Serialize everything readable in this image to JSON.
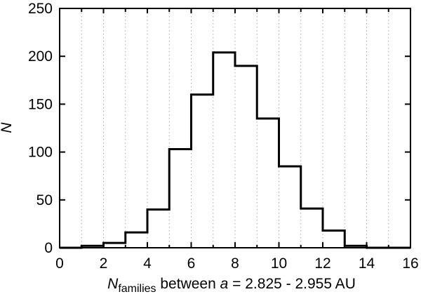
{
  "chart_data": {
    "type": "bar",
    "subtype": "step-histogram-outline",
    "title": "",
    "bin_left_edges": [
      0,
      1,
      2,
      3,
      4,
      5,
      6,
      7,
      8,
      9,
      10,
      11,
      12,
      13,
      14,
      15
    ],
    "bin_width": 1,
    "values": [
      0,
      2,
      5,
      16,
      40,
      103,
      160,
      204,
      190,
      135,
      85,
      41,
      18,
      2,
      0,
      0
    ],
    "xlim": [
      0,
      16
    ],
    "ylim": [
      0,
      250
    ],
    "x_major_ticks": [
      0,
      2,
      4,
      6,
      8,
      10,
      12,
      14,
      16
    ],
    "x_major_tick_labels": [
      "0",
      "2",
      "4",
      "6",
      "8",
      "10",
      "12",
      "14",
      "16"
    ],
    "x_minor_ticks": [
      1,
      3,
      5,
      7,
      9,
      11,
      13,
      15
    ],
    "y_major_ticks": [
      0,
      50,
      100,
      150,
      200,
      250
    ],
    "y_major_tick_labels": [
      "0",
      "50",
      "100",
      "150",
      "200",
      "250"
    ],
    "grid_vertical_lines_at": [
      1,
      2,
      3,
      4,
      5,
      6,
      7,
      8,
      9,
      10,
      11,
      12,
      13,
      14,
      15
    ],
    "grid_style": "dotted",
    "legend": "none",
    "ylabel": "N",
    "ylabel_style": "italic",
    "xlabel_parts": [
      {
        "text": "N",
        "style": "italic"
      },
      {
        "text": "families",
        "style": "sub"
      },
      {
        "text": " between ",
        "style": "normal"
      },
      {
        "text": "a",
        "style": "italic"
      },
      {
        "text": " = 2.825 - 2.955 AU",
        "style": "normal"
      }
    ],
    "colors": {
      "line": "#000000",
      "frame": "#000000",
      "grid": "#ababab",
      "text": "#000000",
      "background": "#ffffff"
    }
  }
}
